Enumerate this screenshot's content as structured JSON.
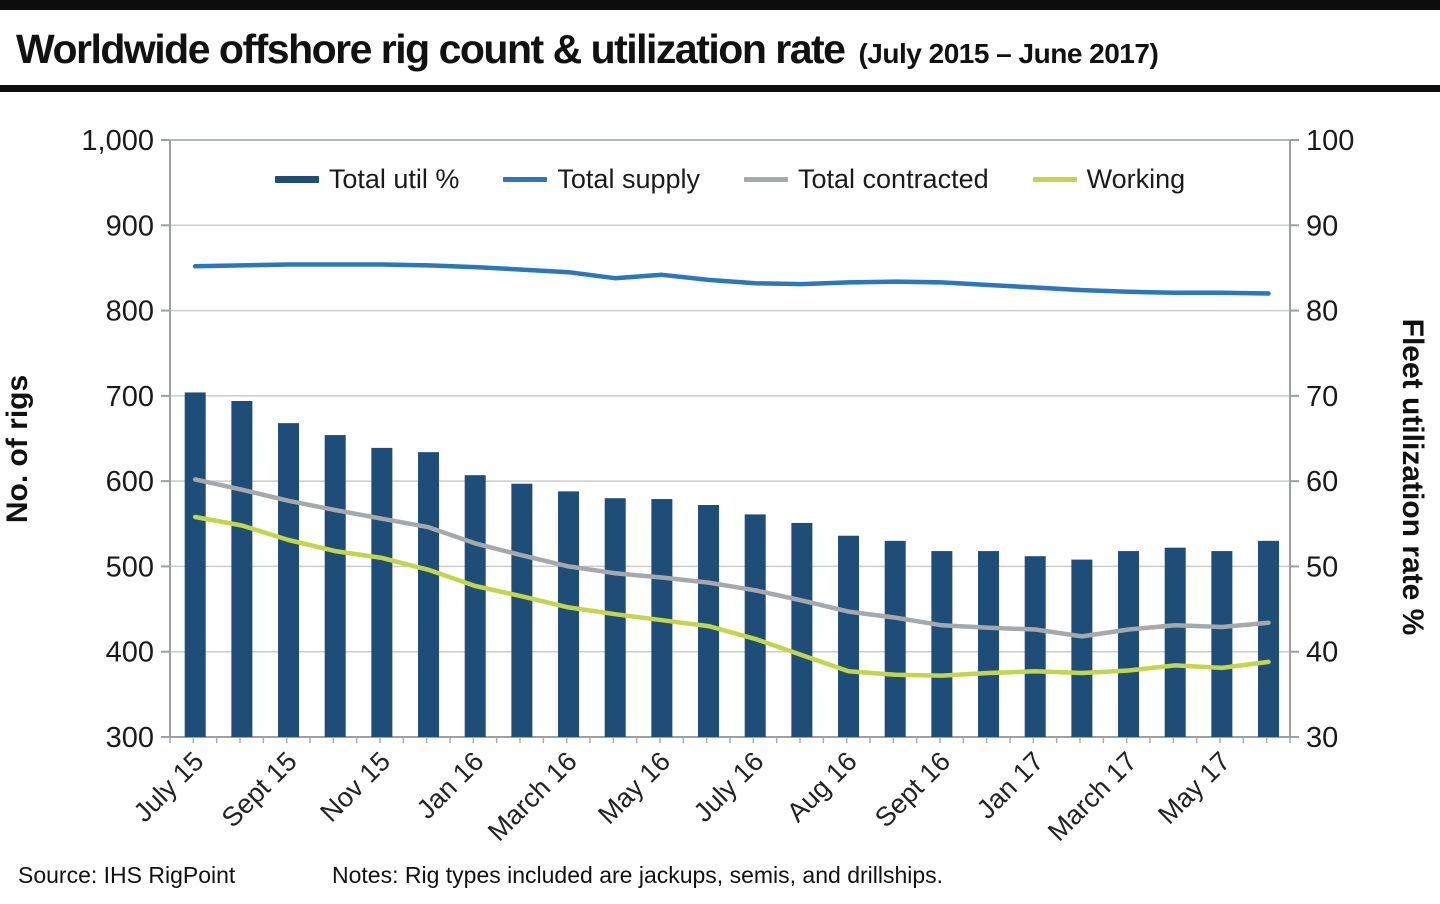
{
  "header": {
    "title": "Worldwide offshore rig count & utilization rate",
    "subtitle": "(July 2015 – June 2017)"
  },
  "chart_data": {
    "type": "bar",
    "subtype": "combo-bar-line",
    "title": "Worldwide offshore rig count & utilization rate (July 2015 – June 2017)",
    "x_labels": [
      "July 15",
      "Sept 15",
      "Nov 15",
      "Jan 16",
      "March 16",
      "May 16",
      "July 16",
      "Aug 16",
      "Sept 16",
      "Jan 17",
      "March 17",
      "May 17"
    ],
    "label_every": 2,
    "n_points": 24,
    "grid": "horizontal",
    "legend_position": "top-center",
    "left_axis": {
      "title": "No. of rigs",
      "min": 300,
      "max": 1000,
      "tick_step": 100,
      "tick_labels": [
        "1,000",
        "900",
        "800",
        "700",
        "600",
        "500",
        "400",
        "300"
      ]
    },
    "right_axis": {
      "title": "Fleet utilization rate %",
      "min": 30,
      "max": 100,
      "tick_step": 10,
      "tick_labels": [
        "100",
        "90",
        "80",
        "70",
        "60",
        "50",
        "40",
        "30"
      ]
    },
    "series": [
      {
        "name": "Total util %",
        "type": "bar",
        "axis": "right",
        "color": "#1e4d78",
        "values": [
          70.4,
          69.4,
          66.8,
          65.4,
          63.9,
          63.4,
          60.7,
          59.7,
          58.8,
          58.0,
          57.9,
          57.2,
          56.1,
          55.1,
          53.6,
          53.0,
          51.8,
          51.8,
          51.2,
          50.8,
          51.8,
          52.2,
          51.8,
          53.0
        ]
      },
      {
        "name": "Total supply",
        "type": "line",
        "axis": "left",
        "color": "#2a77be",
        "values": [
          852,
          853,
          854,
          854,
          854,
          853,
          851,
          848,
          845,
          838,
          842,
          836,
          832,
          831,
          833,
          834,
          833,
          830,
          827,
          824,
          822,
          821,
          821,
          820
        ]
      },
      {
        "name": "Total contracted",
        "type": "line",
        "axis": "left",
        "color": "#a5a9ac",
        "values": [
          602,
          590,
          577,
          566,
          556,
          546,
          527,
          513,
          500,
          492,
          487,
          481,
          472,
          460,
          447,
          440,
          431,
          428,
          426,
          418,
          426,
          431,
          429,
          434
        ]
      },
      {
        "name": "Working",
        "type": "line",
        "axis": "left",
        "color": "#c3d64a",
        "values": [
          558,
          548,
          531,
          518,
          510,
          496,
          477,
          465,
          452,
          444,
          437,
          430,
          415,
          396,
          377,
          373,
          372,
          375,
          377,
          375,
          378,
          384,
          381,
          388
        ]
      }
    ]
  },
  "legend": {
    "items": [
      {
        "label": "Total util %",
        "color": "#1e4d78",
        "thick": true
      },
      {
        "label": "Total supply",
        "color": "#2a77be",
        "thick": false
      },
      {
        "label": "Total contracted",
        "color": "#a5a9ac",
        "thick": false
      },
      {
        "label": "Working",
        "color": "#c3d64a",
        "thick": false
      }
    ]
  },
  "footer": {
    "source": "Source: IHS RigPoint",
    "notes": "Notes: Rig types included are jackups, semis, and drillships."
  },
  "colors": {
    "bar": "#1e4d78",
    "supply_line": "#2a77be",
    "contracted_line": "#a5a9ac",
    "working_line": "#c3d64a",
    "gridline": "#cccccc",
    "axis": "#9aa0a4",
    "title_bar": "#0d0d0d"
  }
}
